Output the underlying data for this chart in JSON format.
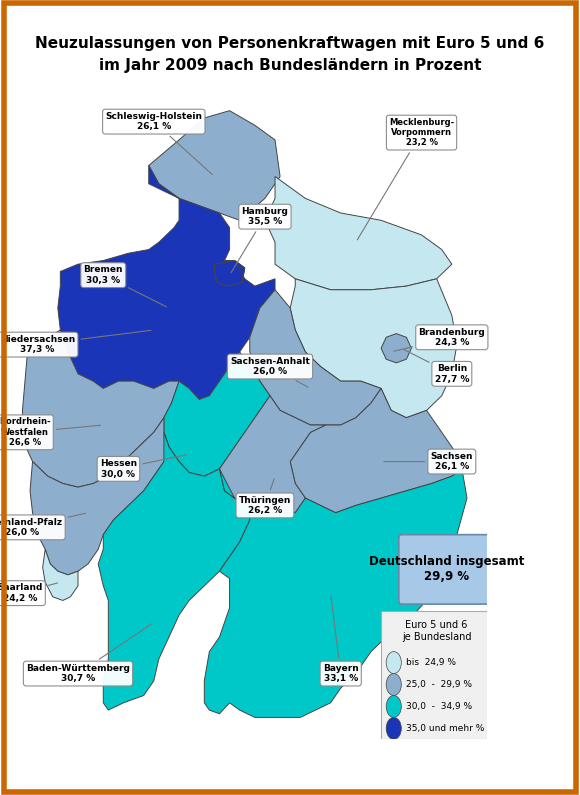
{
  "title_line1": "Neuzulassungen von Personenkraftwagen mit Euro 5 und 6",
  "title_line2": "im Jahr 2009 nach Bundesländern in Prozent",
  "background_color": "#ffffff",
  "border_color": "#cc6600",
  "color_categories": [
    {
      "label": "bis  24,9 %",
      "color": "#c5e8f0",
      "max": 24.9
    },
    {
      "label": "25,0  -  29,9 %",
      "color": "#8eaece",
      "max": 29.9
    },
    {
      "label": "30,0  -  34,9 %",
      "color": "#00c8c8",
      "max": 34.9
    },
    {
      "label": "35,0 und mehr %",
      "color": "#1a35b8",
      "max": 999
    }
  ],
  "state_values": {
    "Schleswig-Holstein": 26.1,
    "Hamburg": 35.5,
    "Mecklenburg-Vorpommern": 23.2,
    "Bremen": 30.3,
    "Niedersachsen": 37.3,
    "Brandenburg": 24.3,
    "Sachsen-Anhalt": 26.0,
    "Berlin": 27.7,
    "Nordrhein-Westfalen": 26.6,
    "Hessen": 30.0,
    "Sachsen": 26.1,
    "Thüringen": 26.2,
    "Rheinland-Pfalz": 26.0,
    "Saarland": 24.2,
    "Baden-Württemberg": 30.7,
    "Bayern": 33.1
  },
  "legend_title": "Euro 5 und 6\nje Bundesland",
  "deutschland_text": "Deutschland insgesamt\n29,9 %",
  "outline_color": "#444444"
}
